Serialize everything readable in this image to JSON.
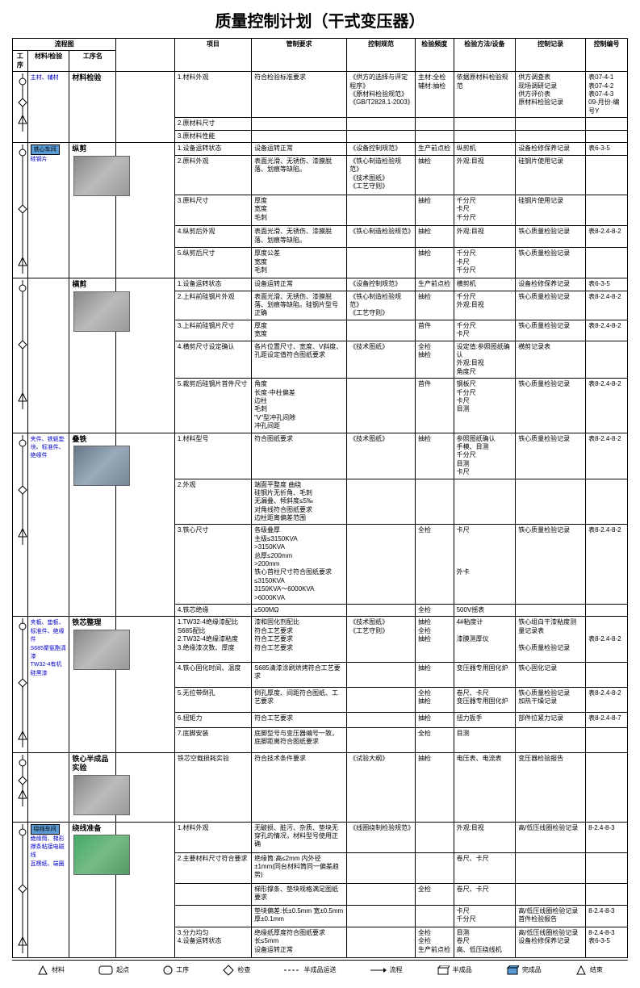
{
  "title": "质量控制计划（干式变压器）",
  "headers": {
    "flow": "流程图",
    "seq": "工序",
    "mat": "材料/检验",
    "procname": "工序名",
    "item": "项目",
    "req": "管制要求",
    "spec": "控制规范",
    "freq": "检验频度",
    "method": "检验方法/设备",
    "record": "控制记录",
    "code": "控制编号"
  },
  "rows": [
    {
      "proc": "材料检验",
      "mat_note": "主材、辅材",
      "items": [
        {
          "item": "1.材料外观",
          "req": "符合检验标准要求",
          "spec": "《供方的选择与评定程序》\n《原材料检验规范》\n《GB/T2828.1-2003》",
          "freq": "主材:全检\n辅材:抽检",
          "method": "依据原材料检验规范",
          "record": "供方调查表\n现场调研记录\n供方评价表\n原材料检验记录",
          "code": "表07-4-1\n表07-4-2\n表07-4-3\n09-月份-编号Y"
        },
        {
          "item": "2.原材料尺寸",
          "req": "",
          "spec": "",
          "freq": "",
          "method": "",
          "record": "",
          "code": ""
        },
        {
          "item": "3.原材料性能",
          "req": "",
          "spec": "",
          "freq": "",
          "method": "",
          "record": "",
          "code": ""
        }
      ]
    },
    {
      "proc": "纵剪",
      "workshop": "铁心车间",
      "mat_note": "硅钢片",
      "photo": "photo",
      "items": [
        {
          "item": "1.设备运转状态",
          "req": "设备运转正常",
          "spec": "《设备控制规范》",
          "freq": "生产前点检",
          "method": "纵剪机",
          "record": "设备检修保养记录",
          "code": "表6-3-5"
        },
        {
          "item": "2.原料外观",
          "req": "表面光滑、无锈伤、漆膜脱落、划痕等缺陷。",
          "spec": "《铁心制造检验规范》\n《技术图纸》\n《工艺守则》",
          "freq": "抽检",
          "method": "外观:目视",
          "record": "硅钢片使用记录",
          "code": ""
        },
        {
          "item": "3.原料尺寸",
          "req": "厚度\n宽度\n毛刺",
          "spec": "",
          "freq": "抽检",
          "method": "千分尺\n卡尺\n千分尺",
          "record": "硅钢片使用记录",
          "code": ""
        },
        {
          "item": "4.纵剪后外观",
          "req": "表面光滑、无锈伤、漆膜脱落、划痕等缺陷。",
          "spec": "《铁心制造检验规范》",
          "freq": "抽检",
          "method": "外观:目视",
          "record": "铁心质量检验记录",
          "code": "表8-2.4-8-2"
        },
        {
          "item": "5.纵剪后尺寸",
          "req": "厚度公差\n宽度\n毛刺",
          "spec": "",
          "freq": "抽检",
          "method": "千分尺\n卡尺\n千分尺",
          "record": "铁心质量检验记录",
          "code": ""
        }
      ]
    },
    {
      "proc": "横剪",
      "photo": "photo",
      "items": [
        {
          "item": "1.设备运转状态",
          "req": "设备运转正常",
          "spec": "《设备控制规范》",
          "freq": "生产前点检",
          "method": "横剪机",
          "record": "设备检修保养记录",
          "code": "表6-3-5"
        },
        {
          "item": "2.上料前硅钢片外观",
          "req": "表面光滑、无锈伤、漆膜脱落、划痕等缺陷。硅钢片型号正确",
          "spec": "《铁心制造检验规范》\n《工艺守则》",
          "freq": "抽检",
          "method": "千分尺\n外观:目视",
          "record": "铁心质量检验记录",
          "code": "表8-2.4-8-2"
        },
        {
          "item": "3.上料前硅钢片尺寸",
          "req": "厚度\n宽度",
          "spec": "",
          "freq": "首件",
          "method": "千分尺\n卡尺",
          "record": "铁心质量检验记录",
          "code": "表8-2.4-8-2"
        },
        {
          "item": "4.横剪尺寸设定确认",
          "req": "各片位置尺寸、宽度、V斜度、孔距设定值符合图纸要求",
          "spec": "《技术图纸》",
          "freq": "全检\n抽检",
          "method": "设定值:参照图纸确认\n外观:目视\n角度尺",
          "record": "横剪记录表",
          "code": ""
        },
        {
          "item": "5.裁剪后硅钢片首件尺寸",
          "req": "角度\n长度·中柱偏差\n边柱\n毛刺\n\"V\"型冲孔间隙\n冲孔间距",
          "spec": "",
          "freq": "首件",
          "method": "钢板尺\n千分尺\n卡尺\n目测",
          "record": "铁心质量检验记录",
          "code": "表8-2.4-8-2"
        }
      ]
    },
    {
      "proc": "叠铁",
      "mat_note": "夹件、铁轭垫块、标准件、绝缘件",
      "photo": "photo3",
      "items": [
        {
          "item": "1.材料型号",
          "req": "符合图纸要求",
          "spec": "《技术图纸》",
          "freq": "抽检",
          "method": "参照图纸确认\n手模、目测\n千分尺\n目测\n卡尺",
          "record": "铁心质量检验记录",
          "code": "表8-2.4-8-2"
        },
        {
          "item": "2.外观",
          "req": "端面平整度  曲绕\n硅钢片无折角、毛刺\n无漏叠、倾斜度≤5‰\n对角线符合图纸要求\n边柱距离偏差范围",
          "spec": "",
          "freq": "",
          "method": "",
          "record": "",
          "code": ""
        },
        {
          "item": "3.铁心尺寸",
          "req": "各级叠厚\n主级≤3150KVA\n>3150KVA\n总厚≤200mm\n>200mm\n铁心首柱尺寸符合图纸要求\n≤3150KVA\n3150KVA～6000KVA\n>6000KVA",
          "spec": "",
          "freq": "全检",
          "method": "卡尺\n\n\n\n\n外卡",
          "record": "铁心质量检验记录",
          "code": "表8-2.4-8-2"
        },
        {
          "item": "4.铁芯绝缘",
          "req": "≥500MΩ",
          "spec": "",
          "freq": "全检",
          "method": "500V摇表",
          "record": "",
          "code": ""
        }
      ]
    },
    {
      "proc": "铁芯整理",
      "mat_note": "夹板、垫板、标准件、绝缘件\nS685聚氨酯清漆\nTW32-4有机硅黑漆",
      "photo": "photo",
      "items": [
        {
          "item": "1.TW32-4绝缘漆配比\nS685配比\n2.TW32-4绝缘漆粘度\n3.绝缘漆次数、厚度",
          "req": "漆和固化剂配比\n符合工艺要求\n符合工艺要求\n符合工艺要求",
          "spec": "《技术图纸》\n《工艺守则》",
          "freq": "抽检\n全检\n抽检",
          "method": "4#粘度计\n\n漆膜测厚仪",
          "record": "铁心组白干漆粘度测量记录表\n\n铁心质量检验记录",
          "code": "\n\n表8-2.4-8-2"
        },
        {
          "item": "4.铁心固化时间、温度",
          "req": "S685清漆涂刷烘烤符合工艺要求",
          "spec": "",
          "freq": "抽检",
          "method": "变压器专用固化炉",
          "record": "铁心固化记录",
          "code": ""
        },
        {
          "item": "5.无拉带倒孔",
          "req": "倒孔厚度、间距符合图纸、工艺要求",
          "spec": "",
          "freq": "全检\n抽检",
          "method": "卷尺、卡尺\n变压器专用固化炉",
          "record": "铁心质量检验记录\n加热干燥记录",
          "code": "表8-2.4-8-2"
        },
        {
          "item": "6.扭矩力",
          "req": "符合工艺要求",
          "spec": "",
          "freq": "抽检",
          "method": "扭力扳手",
          "record": "部件拉紧力记录",
          "code": "表8-2.4-8-7"
        },
        {
          "item": "7.底脚安装",
          "req": "底脚型号与变压器编号一致，底脚距离符合图纸要求",
          "spec": "",
          "freq": "全检",
          "method": "目测",
          "record": "",
          "code": ""
        }
      ]
    },
    {
      "proc": "铁心半成品实验",
      "photo": "photo",
      "items": [
        {
          "item": "铁芯空载损耗实验",
          "req": "符合技术条件要求",
          "spec": "《试验大纲》",
          "freq": "抽检",
          "method": "电压表、电流表",
          "record": "变压器检验报告",
          "code": ""
        }
      ]
    },
    {
      "proc": "绕线准备",
      "workshop": "绕线车间",
      "mat_note": "绝缘筒、梯形撑条粘接电磁线\n瓦楞纸、端圈",
      "photo": "photo2",
      "items": [
        {
          "item": "1.材料外观",
          "req": "无破损、脏污、杂质、垫块无穿孔的情况，材料型号使用正确",
          "spec": "《线圈绕制检验规范》",
          "freq": "",
          "method": "外观:目视",
          "record": "高/低压线圈检验记录",
          "code": "8-2.4-8-3"
        },
        {
          "item": "2.主要材料尺寸符合要求",
          "req": "绝缘筒:高≤2mm  内外径±1mm(同台材料筒同一偏差趋势)",
          "spec": "",
          "freq": "",
          "method": "卷尺、卡尺",
          "record": "",
          "code": ""
        },
        {
          "item": "",
          "req": "梯形撑条、垫块规格满足图纸要求",
          "spec": "",
          "freq": "全检",
          "method": "卷尺、卡尺",
          "record": "",
          "code": ""
        },
        {
          "item": "",
          "req": "垫块偏差:长±0.5mm 宽±0.5mm\n厚±0.1mm",
          "spec": "",
          "freq": "",
          "method": "卡尺\n千分尺",
          "record": "高/低压线圈检验记录\n首件检验报告",
          "code": "8-2.4-8-3"
        },
        {
          "item": "3.分力均匀\n4.设备运转状态",
          "req": "绝缘纸厚度符合图纸要求\n长≤5mm\n设备运转正常",
          "spec": "",
          "freq": "全检\n全检\n生产前点检",
          "method": "目测\n卷尺\n高、低压绕线机",
          "record": "高/低压线圈检验记录\n设备检修保养记录",
          "code": "8-2.4-8-3\n表6-3-5"
        }
      ]
    }
  ],
  "legend": {
    "material": "材料",
    "start": "起点",
    "process": "工序",
    "check": "检查",
    "semi_trans": "半成品运送",
    "flow": "流程",
    "semi": "半成品",
    "finished": "完成品",
    "end": "结束"
  }
}
